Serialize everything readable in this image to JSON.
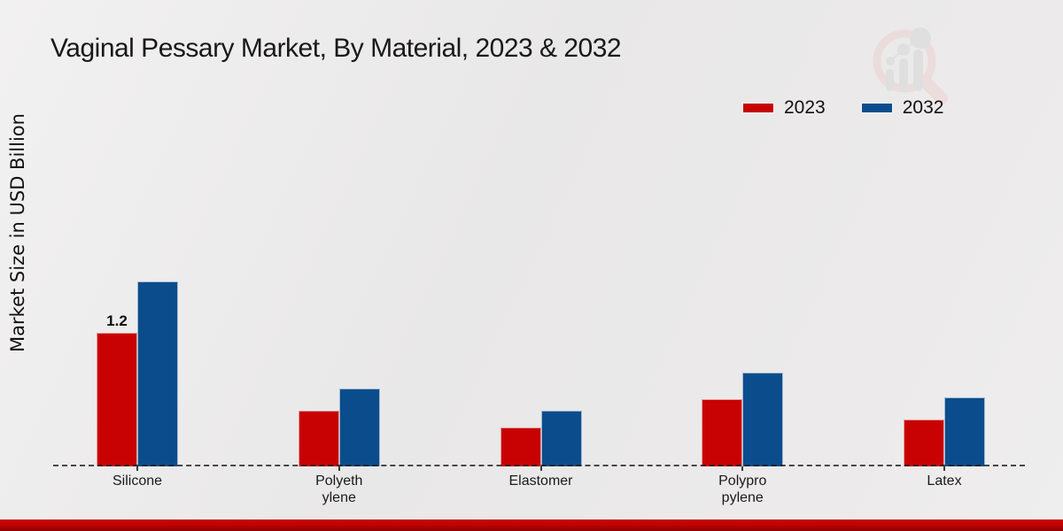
{
  "title": "Vaginal Pessary Market, By Material, 2023 & 2032",
  "ylabel": "Market Size in USD Billion",
  "colors": {
    "series_2023": "#c80202",
    "series_2032": "#0b4d8c",
    "background": "#eae9e9",
    "footer_strip": "#b30303",
    "baseline": "#2b2b2b",
    "text": "#191919"
  },
  "watermark": {
    "icon": "magnifier-bar-chart-logo-icon"
  },
  "chart_data": {
    "type": "bar",
    "title": "Vaginal Pessary Market, By Material, 2023 & 2032",
    "ylabel": "Market Size in USD Billion",
    "xlabel": "",
    "categories": [
      "Silicone",
      "Polyethylene",
      "Elastomer",
      "Polypropylene",
      "Latex"
    ],
    "category_display": [
      "Silicone",
      "Polyeth\nylene",
      "Elastomer",
      "Polypro\npylene",
      "Latex"
    ],
    "series": [
      {
        "name": "2023",
        "color": "#c80202",
        "values": [
          1.2,
          0.5,
          0.35,
          0.6,
          0.42
        ]
      },
      {
        "name": "2032",
        "color": "#0b4d8c",
        "values": [
          1.66,
          0.7,
          0.5,
          0.84,
          0.62
        ]
      }
    ],
    "value_labels": [
      {
        "series": "2023",
        "category": "Silicone",
        "text": "1.2"
      }
    ],
    "ylim": [
      0,
      1.8
    ],
    "y_axis_ticks_visible": false,
    "grid": false,
    "baseline_style": "dashed",
    "legend_position": "top-right"
  }
}
